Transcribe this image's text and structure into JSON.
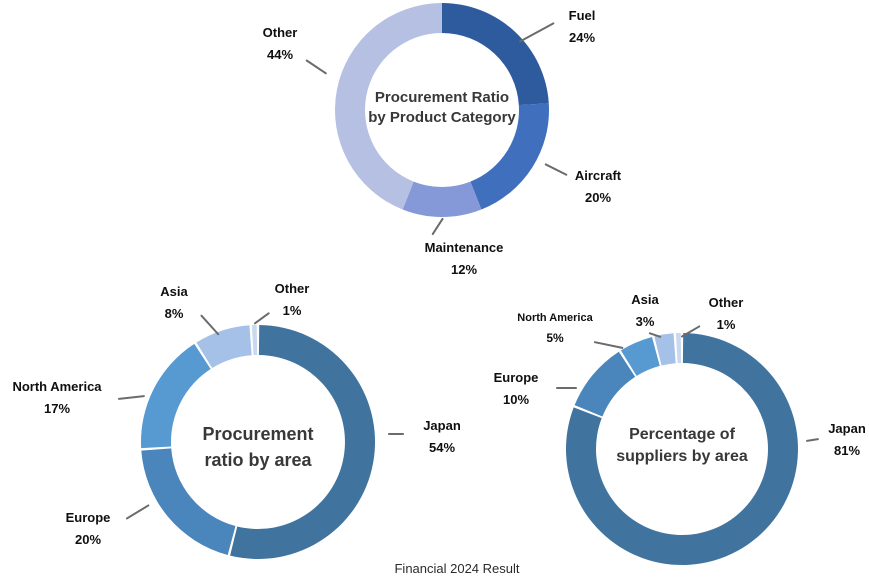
{
  "caption": "Financial 2024 Result",
  "chart_data": [
    {
      "type": "donut",
      "title": "Procurement Ratio by Product Category",
      "title_lines": [
        "Procurement Ratio",
        "by Product Category"
      ],
      "start_angle_deg": 0,
      "direction": "clockwise",
      "dividers": false,
      "segments": [
        {
          "label": "Fuel",
          "value": 24,
          "pct": "24%",
          "color": "#2e5b9e"
        },
        {
          "label": "Aircraft",
          "value": 20,
          "pct": "20%",
          "color": "#3f6fbd"
        },
        {
          "label": "Maintenance",
          "value": 12,
          "pct": "12%",
          "color": "#8599d8"
        },
        {
          "label": "Other",
          "value": 44,
          "pct": "44%",
          "color": "#b5c0e3"
        }
      ]
    },
    {
      "type": "donut",
      "title": "Procurement ratio by area",
      "title_lines": [
        "Procurement",
        "ratio by area"
      ],
      "start_angle_deg": 0,
      "direction": "clockwise",
      "dividers": true,
      "segments": [
        {
          "label": "Japan",
          "value": 54,
          "pct": "54%",
          "color": "#40749f"
        },
        {
          "label": "Europe",
          "value": 20,
          "pct": "20%",
          "color": "#4a86bb"
        },
        {
          "label": "North America",
          "value": 17,
          "pct": "17%",
          "color": "#579ad2"
        },
        {
          "label": "Asia",
          "value": 8,
          "pct": "8%",
          "color": "#a6c1e8"
        },
        {
          "label": "Other",
          "value": 1,
          "pct": "1%",
          "color": "#c9daf0"
        }
      ]
    },
    {
      "type": "donut",
      "title": "Percentage of suppliers by area",
      "title_lines": [
        "Percentage of",
        "suppliers by area"
      ],
      "start_angle_deg": 0,
      "direction": "clockwise",
      "dividers": true,
      "segments": [
        {
          "label": "Japan",
          "value": 81,
          "pct": "81%",
          "color": "#40749f"
        },
        {
          "label": "Europe",
          "value": 10,
          "pct": "10%",
          "color": "#4a86bb"
        },
        {
          "label": "North America",
          "value": 5,
          "pct": "5%",
          "color": "#579ad2"
        },
        {
          "label": "Asia",
          "value": 3,
          "pct": "3%",
          "color": "#a6c1e8"
        },
        {
          "label": "Other",
          "value": 1,
          "pct": "1%",
          "color": "#c9daf0"
        }
      ]
    }
  ]
}
